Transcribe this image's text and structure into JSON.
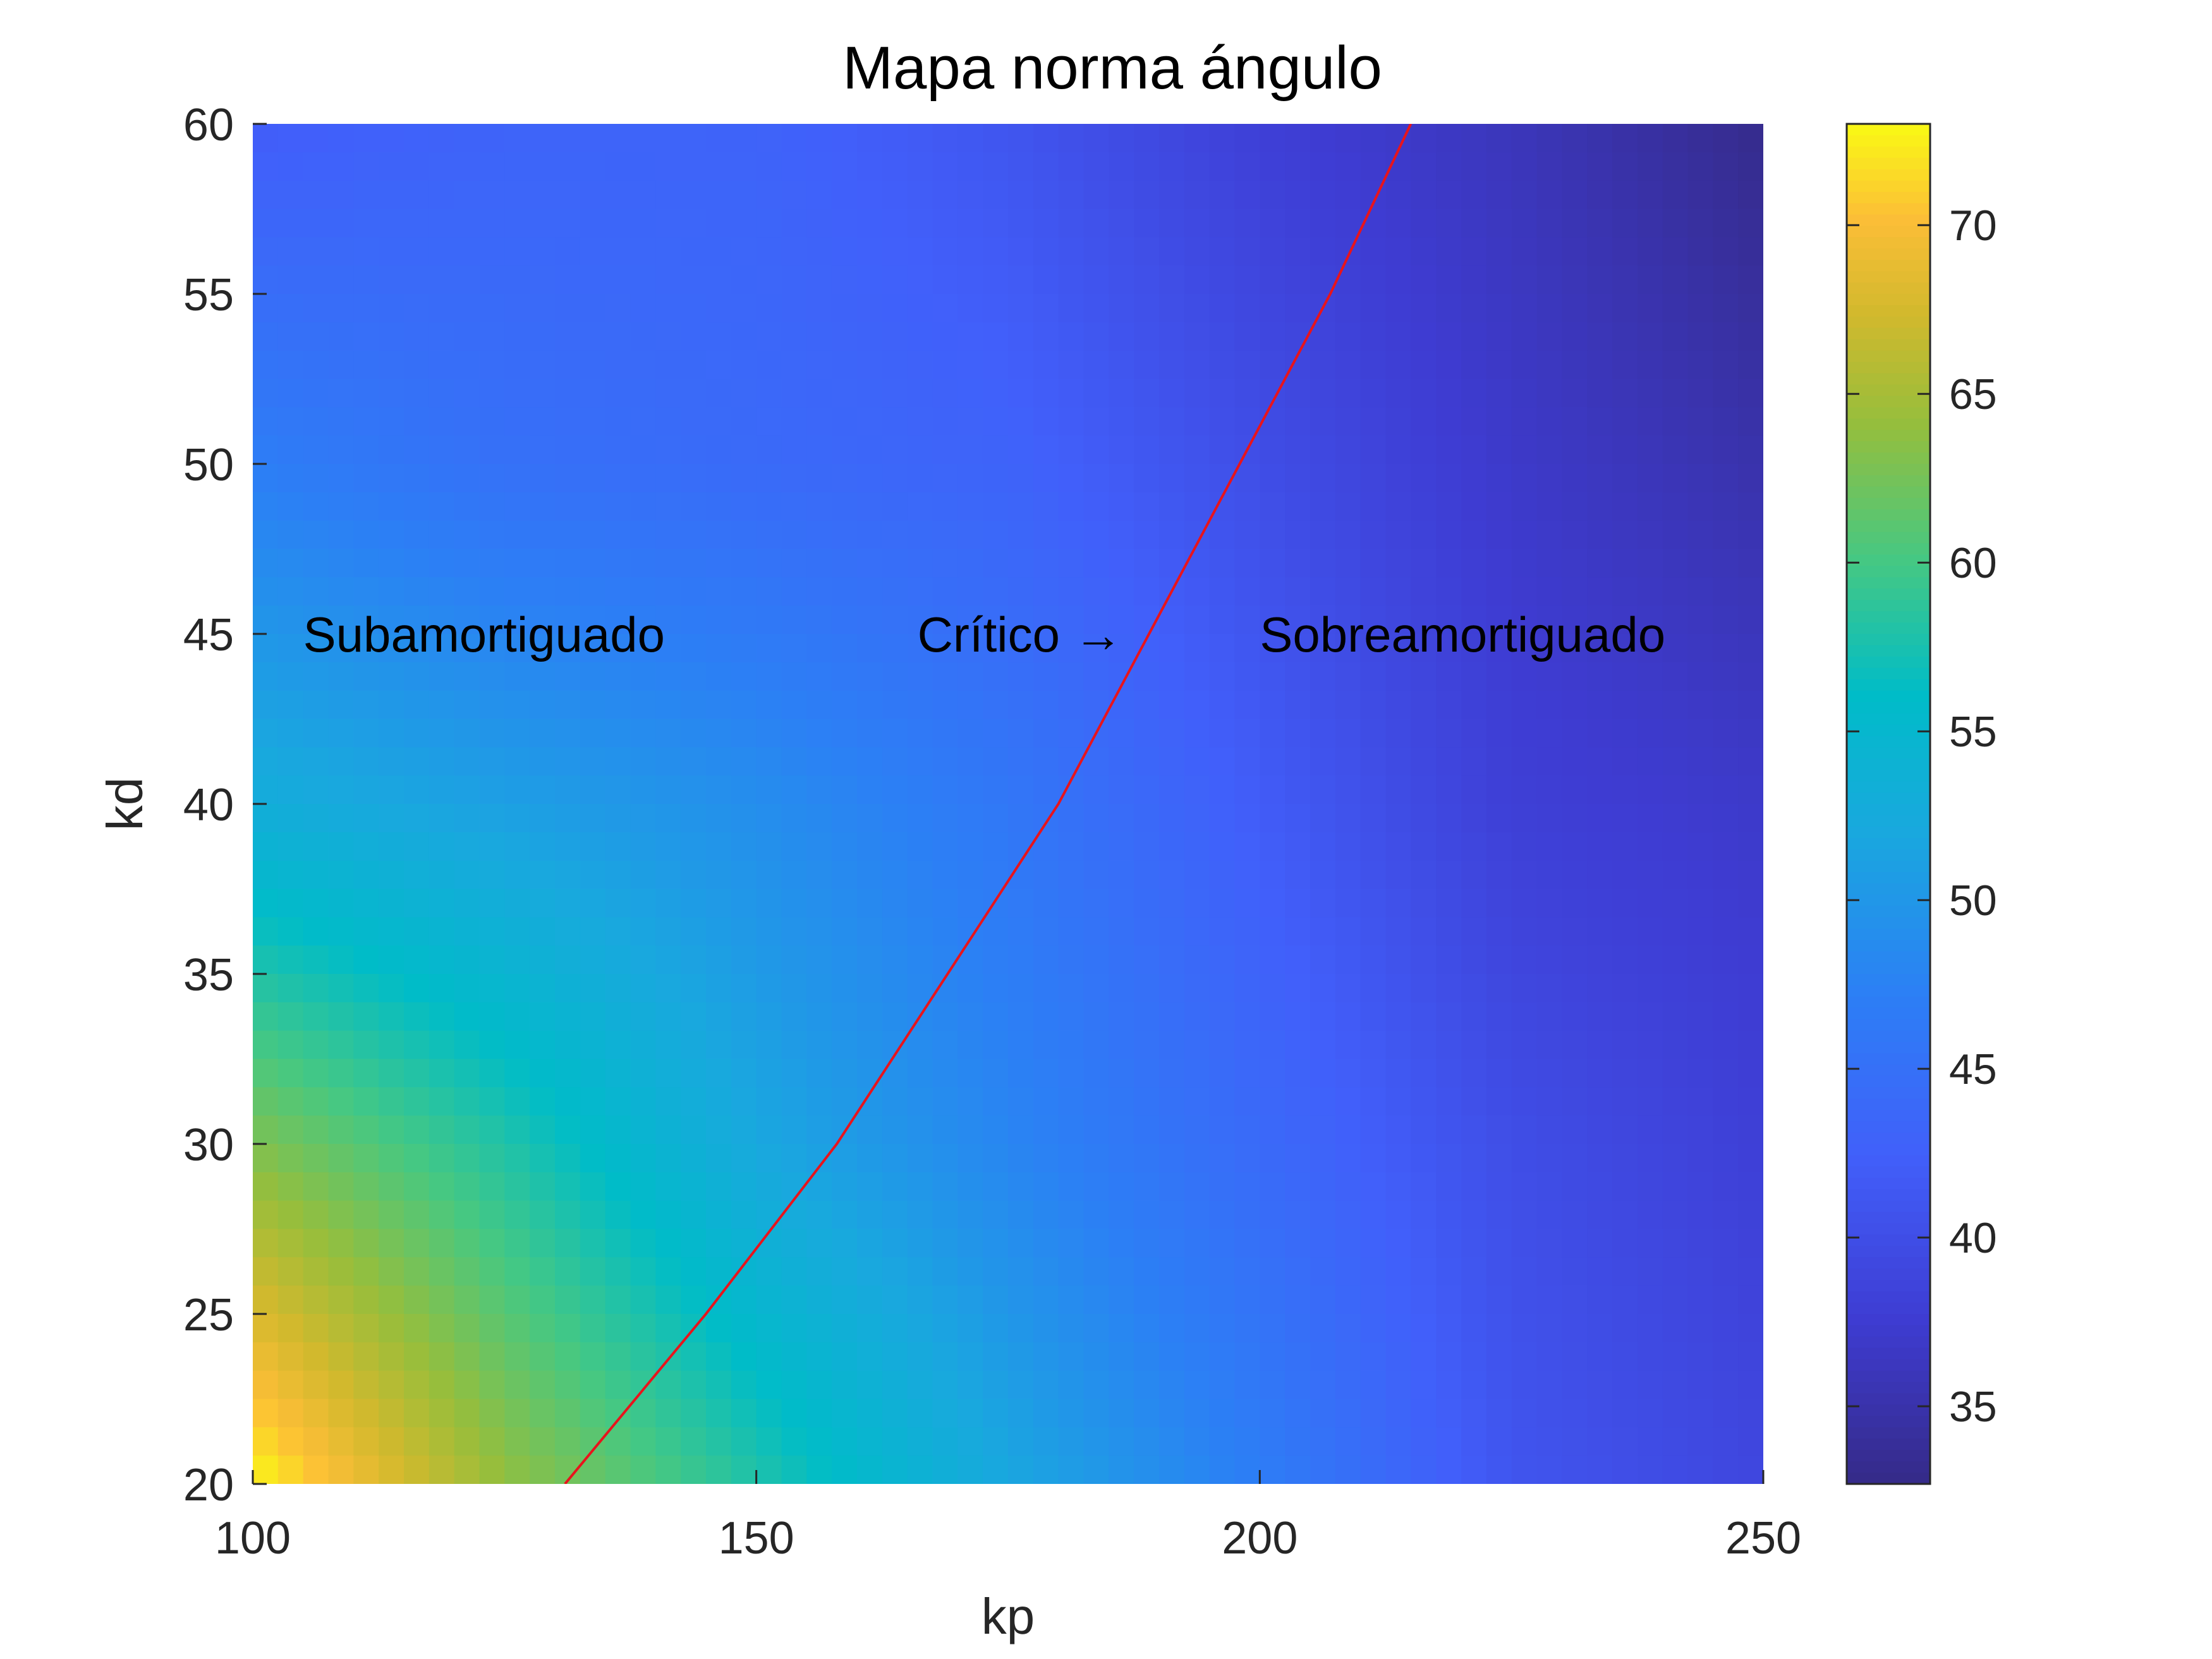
{
  "chart_data": {
    "type": "heatmap",
    "title": "Mapa norma ángulo",
    "xlabel": "kp",
    "ylabel": "kd",
    "xlim": [
      100,
      250
    ],
    "ylim": [
      20,
      60
    ],
    "x_ticks": [
      100,
      150,
      200,
      250
    ],
    "y_ticks": [
      20,
      25,
      30,
      35,
      40,
      45,
      50,
      55,
      60
    ],
    "grid": false,
    "colormap": "parula",
    "colorbar": {
      "range": [
        32.7,
        73
      ],
      "ticks": [
        35,
        40,
        45,
        50,
        55,
        60,
        65,
        70
      ]
    },
    "grid_values": {
      "x": [
        100,
        125,
        150,
        175,
        200,
        225,
        250
      ],
      "y": [
        20,
        30,
        40,
        50,
        60
      ],
      "z": [
        [
          73,
          64,
          58,
          52,
          47,
          41,
          39
        ],
        [
          63,
          58,
          52,
          48,
          44,
          40,
          38
        ],
        [
          53,
          51,
          49,
          46,
          42,
          38,
          37
        ],
        [
          47,
          45,
          44,
          43,
          40,
          37,
          35
        ],
        [
          42,
          43,
          43,
          41,
          38,
          36,
          33
        ]
      ]
    },
    "critical_curve": {
      "name": "Crítico",
      "color": "#e8141c",
      "points": [
        [
          131,
          20
        ],
        [
          145,
          25
        ],
        [
          158,
          30
        ],
        [
          169,
          35
        ],
        [
          180,
          40
        ],
        [
          189,
          45
        ],
        [
          198,
          50
        ],
        [
          207,
          55
        ],
        [
          215,
          60
        ]
      ]
    },
    "annotations": [
      {
        "text": "Subamortiguado",
        "x": 105,
        "y": 45
      },
      {
        "text": "Crítico →",
        "x": 166,
        "y": 45
      },
      {
        "text": "Sobreamortiguado",
        "x": 200,
        "y": 45
      }
    ]
  }
}
